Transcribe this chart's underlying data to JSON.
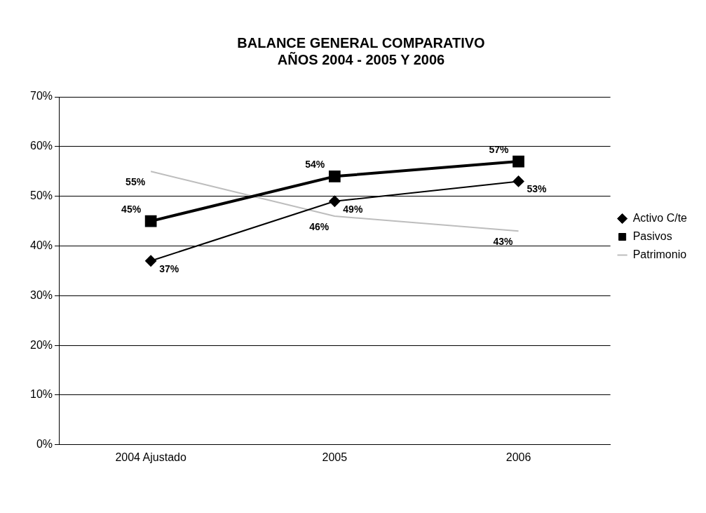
{
  "chart_data": {
    "type": "line",
    "title": [
      "BALANCE GENERAL COMPARATIVO",
      "AÑOS 2004 - 2005 Y 2006"
    ],
    "categories": [
      "2004 Ajustado",
      "2005",
      "2006"
    ],
    "series": [
      {
        "name": "Activo C/te",
        "color": "#000000",
        "values": [
          37,
          49,
          53
        ],
        "value_labels": [
          "37%",
          "49%",
          "53%"
        ],
        "marker": "diamond"
      },
      {
        "name": "Pasivos",
        "color": "#000000",
        "values": [
          45,
          54,
          57
        ],
        "value_labels": [
          "45%",
          "54%",
          "57%"
        ],
        "marker": "square"
      },
      {
        "name": "Patrimonio",
        "color": "#bdbdbd",
        "values": [
          55,
          46,
          43
        ],
        "value_labels": [
          "55%",
          "46%",
          "43%"
        ],
        "marker": "none"
      }
    ],
    "ylim": [
      0,
      70
    ],
    "yticks": [
      {
        "value": 0,
        "label": "0%"
      },
      {
        "value": 10,
        "label": "10%"
      },
      {
        "value": 20,
        "label": "20%"
      },
      {
        "value": 30,
        "label": "30%"
      },
      {
        "value": 40,
        "label": "40%"
      },
      {
        "value": 50,
        "label": "50%"
      },
      {
        "value": 60,
        "label": "60%"
      },
      {
        "value": 70,
        "label": "70%"
      }
    ],
    "grid": "y",
    "legend": "right"
  }
}
